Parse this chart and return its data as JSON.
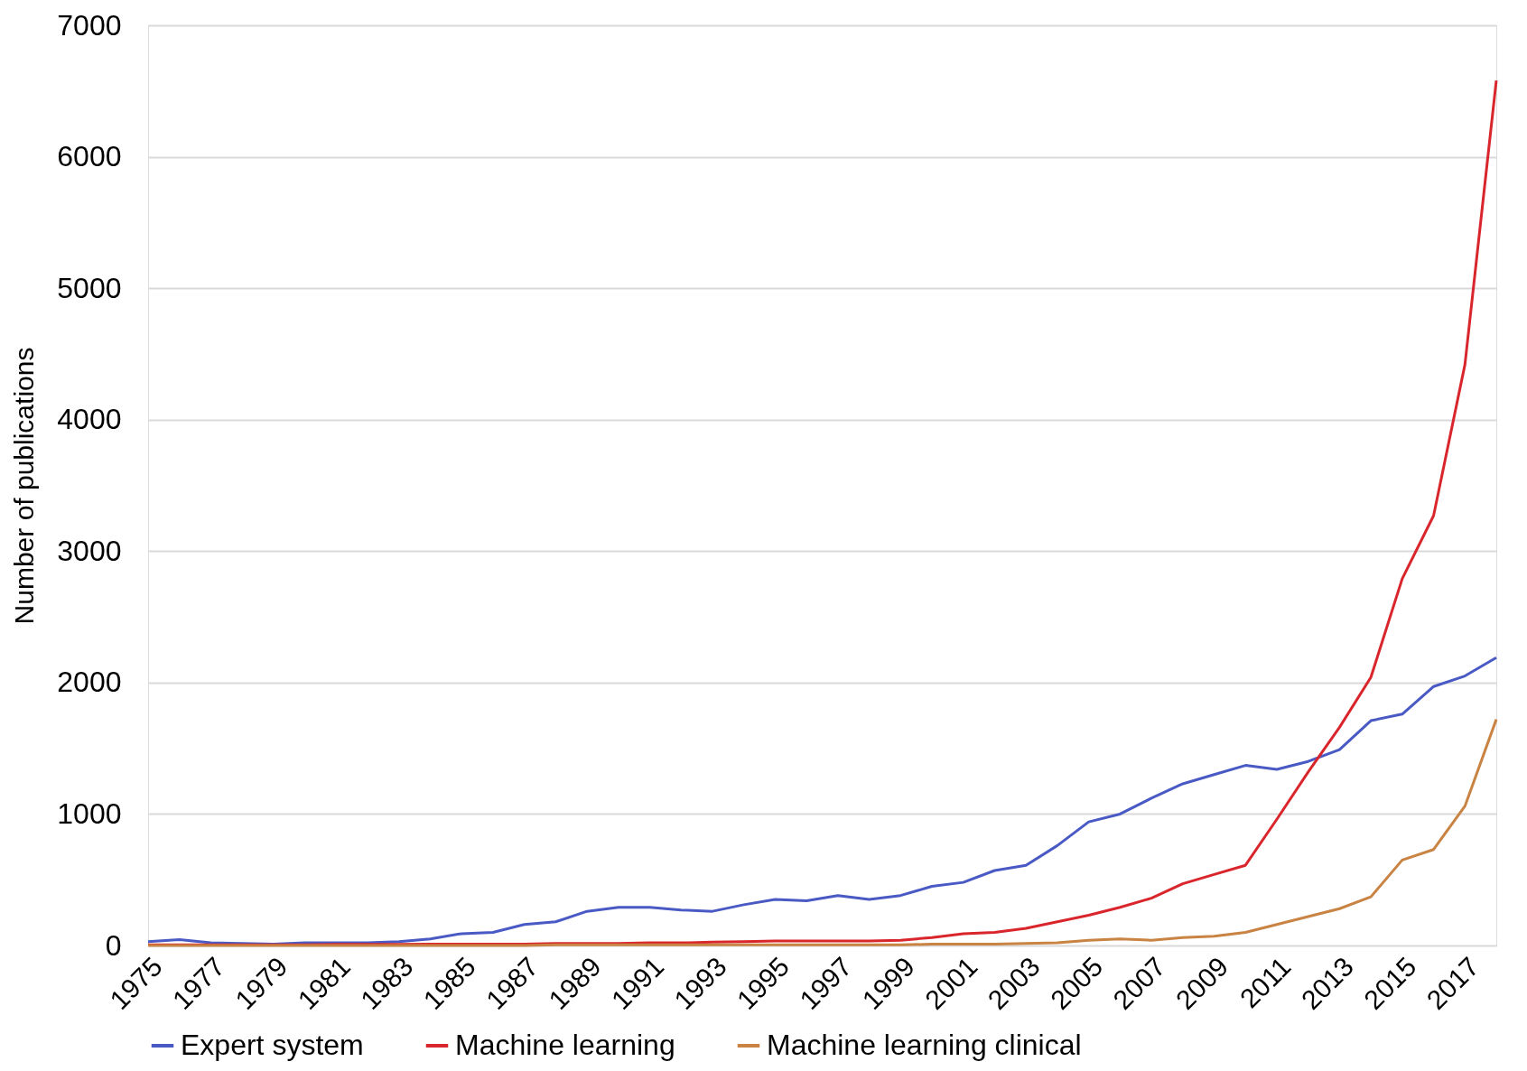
{
  "chart_data": {
    "type": "line",
    "ylabel": "Number of publications",
    "categories": [
      "1975",
      null,
      "1977",
      null,
      "1979",
      null,
      "1981",
      null,
      "1983",
      null,
      "1985",
      null,
      "1987",
      null,
      "1989",
      null,
      "1991",
      null,
      "1993",
      null,
      "1995",
      null,
      "1997",
      null,
      "1999",
      null,
      "2001",
      null,
      "2003",
      null,
      "2005",
      null,
      "2007",
      null,
      "2009",
      null,
      "2011",
      null,
      "2013",
      null,
      "2015",
      null,
      "2017",
      null
    ],
    "series": [
      {
        "name": "Expert system",
        "color": "#4a5ac4",
        "values": [
          30,
          45,
          20,
          15,
          10,
          20,
          20,
          20,
          30,
          50,
          90,
          100,
          160,
          180,
          260,
          290,
          290,
          270,
          260,
          310,
          350,
          340,
          380,
          350,
          380,
          450,
          480,
          570,
          610,
          760,
          940,
          1000,
          1120,
          1230,
          1300,
          1370,
          1340,
          1400,
          1490,
          1710,
          1760,
          1970,
          2050,
          2190
        ]
      },
      {
        "name": "Machine learning",
        "color": "#d9262c",
        "values": [
          5,
          5,
          5,
          5,
          5,
          5,
          8,
          8,
          8,
          10,
          10,
          10,
          10,
          15,
          15,
          15,
          20,
          20,
          25,
          30,
          35,
          35,
          35,
          35,
          40,
          60,
          90,
          100,
          130,
          180,
          230,
          290,
          360,
          470,
          540,
          610,
          960,
          1320,
          1660,
          2040,
          2790,
          3270,
          4420,
          6580
        ]
      },
      {
        "name": "Machine learning clinical",
        "color": "#c98343",
        "values": [
          0,
          0,
          0,
          0,
          0,
          0,
          0,
          0,
          0,
          0,
          0,
          0,
          0,
          5,
          5,
          5,
          5,
          5,
          5,
          5,
          5,
          5,
          5,
          5,
          5,
          10,
          10,
          10,
          15,
          20,
          40,
          50,
          40,
          60,
          70,
          100,
          160,
          220,
          280,
          370,
          650,
          730,
          1060,
          1720
        ]
      }
    ],
    "ylim": [
      0,
      7000
    ],
    "yticks": [
      0,
      1000,
      2000,
      3000,
      4000,
      5000,
      6000,
      7000
    ],
    "grid": "y",
    "legend": "bottom",
    "marker": "none",
    "line_style": "solid"
  }
}
